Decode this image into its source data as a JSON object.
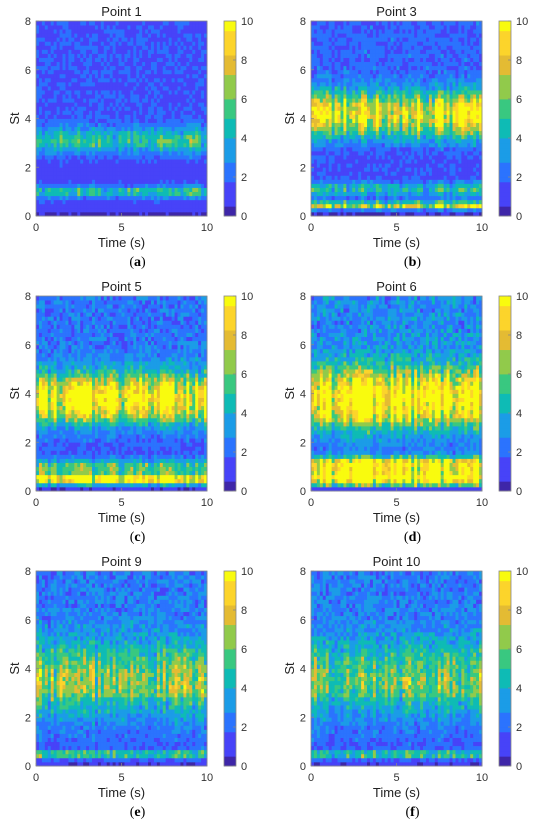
{
  "colormap": [
    "#3e26a8",
    "#4743f8",
    "#2b73fe",
    "#1b9ce7",
    "#0ebbb5",
    "#39c880",
    "#91ca4b",
    "#e4bb33",
    "#fcd42b",
    "#f9fb0e"
  ],
  "chart_data": [
    {
      "type": "heatmap",
      "title": "Point 1",
      "xlabel": "Time (s)",
      "ylabel": "St",
      "xlim": [
        0,
        10
      ],
      "ylim": [
        0,
        8
      ],
      "x_ticks": [
        0,
        5,
        10
      ],
      "y_ticks": [
        0,
        2,
        4,
        6,
        8
      ],
      "colorbar": {
        "range": [
          0,
          10
        ],
        "ticks": [
          0,
          2,
          4,
          6,
          8,
          10
        ]
      },
      "caption": {
        "open": "(",
        "letter": "a",
        "close": ")"
      },
      "bands": [
        {
          "st": 1.0,
          "level": 3.8,
          "width": 0.25
        },
        {
          "st": 3.1,
          "level": 3.5,
          "width": 0.55
        }
      ],
      "base_level": 1.6
    },
    {
      "type": "heatmap",
      "title": "Point 3",
      "xlabel": "Time (s)",
      "ylabel": "St",
      "xlim": [
        0,
        10
      ],
      "ylim": [
        0,
        8
      ],
      "x_ticks": [
        0,
        5,
        10
      ],
      "y_ticks": [
        0,
        2,
        4,
        6,
        8
      ],
      "colorbar": {
        "range": [
          0,
          10
        ],
        "ticks": [
          0,
          2,
          4,
          6,
          8,
          10
        ]
      },
      "caption": {
        "open": "(",
        "letter": "b",
        "close": ")"
      },
      "bands": [
        {
          "st": 0.45,
          "level": 7.0,
          "width": 0.15
        },
        {
          "st": 1.1,
          "level": 3.5,
          "width": 0.3
        },
        {
          "st": 4.2,
          "level": 7.5,
          "width": 0.9
        }
      ],
      "base_level": 2.0
    },
    {
      "type": "heatmap",
      "title": "Point 5",
      "xlabel": "Time (s)",
      "ylabel": "St",
      "xlim": [
        0,
        10
      ],
      "ylim": [
        0,
        8
      ],
      "x_ticks": [
        0,
        5,
        10
      ],
      "y_ticks": [
        0,
        2,
        4,
        6,
        8
      ],
      "colorbar": {
        "range": [
          0,
          10
        ],
        "ticks": [
          0,
          2,
          4,
          6,
          8,
          10
        ]
      },
      "caption": {
        "open": "(",
        "letter": "c",
        "close": ")"
      },
      "bands": [
        {
          "st": 0.5,
          "level": 9.5,
          "width": 0.2
        },
        {
          "st": 1.0,
          "level": 4.2,
          "width": 0.3
        },
        {
          "st": 3.8,
          "level": 7.8,
          "width": 1.0
        }
      ],
      "base_level": 2.4
    },
    {
      "type": "heatmap",
      "title": "Point 6",
      "xlabel": "Time (s)",
      "ylabel": "St",
      "xlim": [
        0,
        10
      ],
      "ylim": [
        0,
        8
      ],
      "x_ticks": [
        0,
        5,
        10
      ],
      "y_ticks": [
        0,
        2,
        4,
        6,
        8
      ],
      "colorbar": {
        "range": [
          0,
          10
        ],
        "ticks": [
          0,
          2,
          4,
          6,
          8,
          10
        ]
      },
      "caption": {
        "open": "(",
        "letter": "d",
        "close": ")"
      },
      "bands": [
        {
          "st": 0.55,
          "level": 10,
          "width": 0.3
        },
        {
          "st": 1.1,
          "level": 8.5,
          "width": 0.3
        },
        {
          "st": 3.8,
          "level": 8.3,
          "width": 1.2
        }
      ],
      "base_level": 3.0
    },
    {
      "type": "heatmap",
      "title": "Point 9",
      "xlabel": "Time (s)",
      "ylabel": "St",
      "xlim": [
        0,
        10
      ],
      "ylim": [
        0,
        8
      ],
      "x_ticks": [
        0,
        5,
        10
      ],
      "y_ticks": [
        0,
        2,
        4,
        6,
        8
      ],
      "colorbar": {
        "range": [
          0,
          10
        ],
        "ticks": [
          0,
          2,
          4,
          6,
          8,
          10
        ]
      },
      "caption": {
        "open": "(",
        "letter": "e",
        "close": ")"
      },
      "bands": [
        {
          "st": 0.5,
          "level": 5.0,
          "width": 0.12
        },
        {
          "st": 3.5,
          "level": 4.2,
          "width": 1.5
        }
      ],
      "base_level": 2.6
    },
    {
      "type": "heatmap",
      "title": "Point 10",
      "xlabel": "Time (s)",
      "ylabel": "St",
      "xlim": [
        0,
        10
      ],
      "ylim": [
        0,
        8
      ],
      "x_ticks": [
        0,
        5,
        10
      ],
      "y_ticks": [
        0,
        2,
        4,
        6,
        8
      ],
      "colorbar": {
        "range": [
          0,
          10
        ],
        "ticks": [
          0,
          2,
          4,
          6,
          8,
          10
        ]
      },
      "caption": {
        "open": "(",
        "letter": "f",
        "close": ")"
      },
      "bands": [
        {
          "st": 0.5,
          "level": 5.0,
          "width": 0.12
        },
        {
          "st": 3.5,
          "level": 4.0,
          "width": 1.5
        }
      ],
      "base_level": 2.6
    }
  ]
}
